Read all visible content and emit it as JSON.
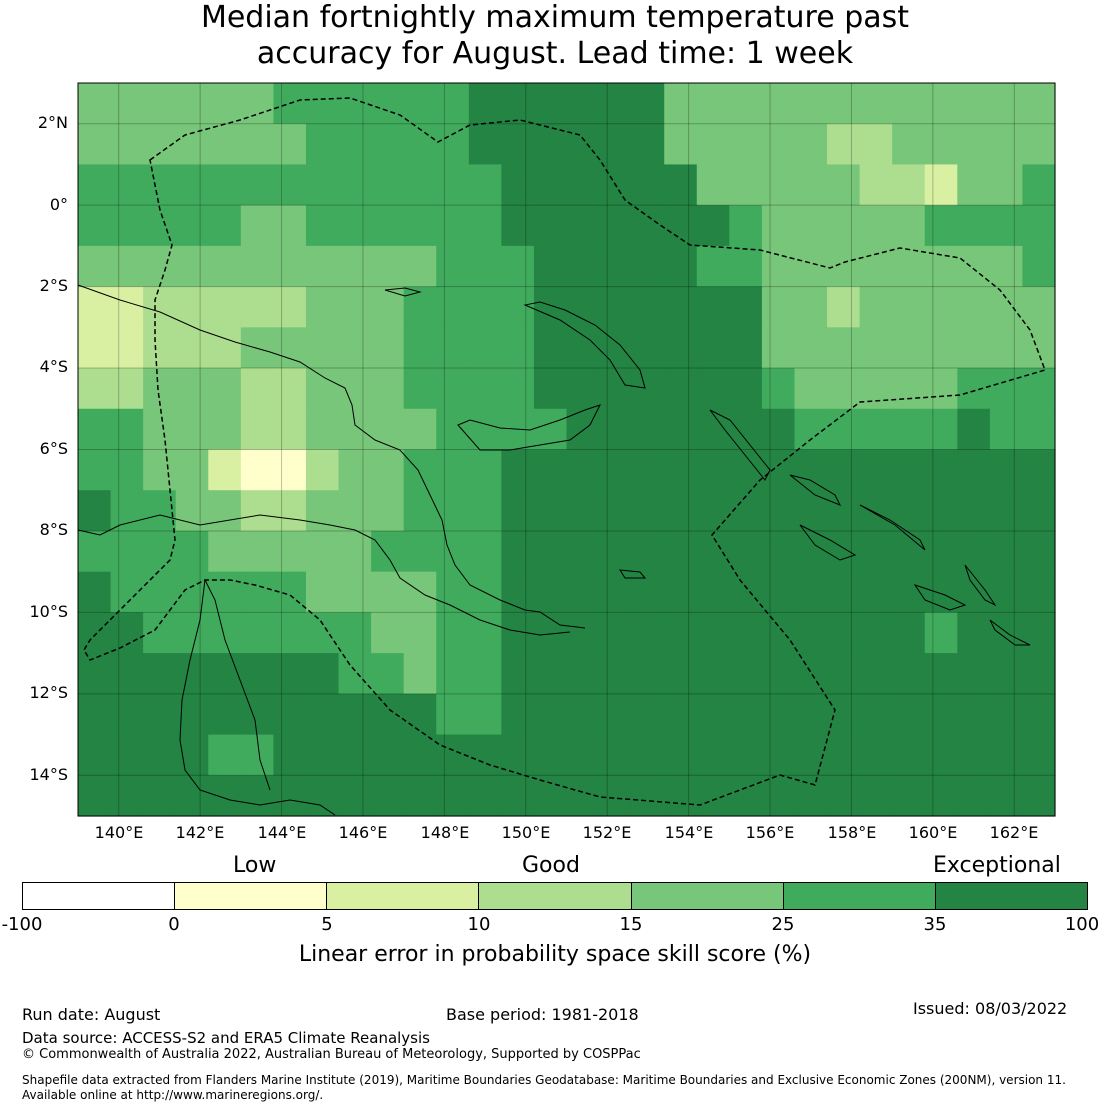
{
  "title_line1": "Median fortnightly maximum temperature past",
  "title_line2": "accuracy for August. Lead time: 1 week",
  "map": {
    "lat_labels": [
      "2°N",
      "0°",
      "2°S",
      "4°S",
      "6°S",
      "8°S",
      "10°S",
      "12°S",
      "14°S"
    ],
    "lon_labels": [
      "140°E",
      "142°E",
      "144°E",
      "146°E",
      "148°E",
      "150°E",
      "152°E",
      "154°E",
      "156°E",
      "158°E",
      "160°E",
      "162°E"
    ],
    "lat_values": [
      2,
      0,
      -2,
      -4,
      -6,
      -8,
      -10,
      -12,
      -14
    ],
    "lon_values": [
      140,
      142,
      144,
      146,
      148,
      150,
      152,
      154,
      156,
      158,
      160,
      162
    ],
    "extent": {
      "lon_min": 139,
      "lon_max": 163,
      "lat_min": -15,
      "lat_max": 3
    }
  },
  "legend": {
    "categories": [
      "Low",
      "Good",
      "Exceptional"
    ],
    "ticks": [
      "-100",
      "0",
      "5",
      "10",
      "15",
      "25",
      "35",
      "100"
    ],
    "colors": [
      "#ffffff",
      "#ffffcc",
      "#d9f0a3",
      "#addd8e",
      "#78c679",
      "#41ab5d",
      "#238443"
    ],
    "label": "Linear error in probability space skill score (%)"
  },
  "footer": {
    "run_date": "Run date: August",
    "base_period": "Base period: 1981-2018",
    "issued": "Issued: 08/03/2022",
    "data_source": "Data source: ACCESS-S2 and ERA5 Climate Reanalysis",
    "copyright": "© Commonwealth of Australia 2022, Australian Bureau of Meteorology, Supported by COSPPac",
    "shapefile_line1": "Shapefile data extracted from Flanders Marine Institute (2019), Maritime Boundaries Geodatabase: Maritime Boundaries and Exclusive Economic Zones (200NM), version 11.",
    "shapefile_line2": "Available online at http://www.marineregions.org/."
  }
}
